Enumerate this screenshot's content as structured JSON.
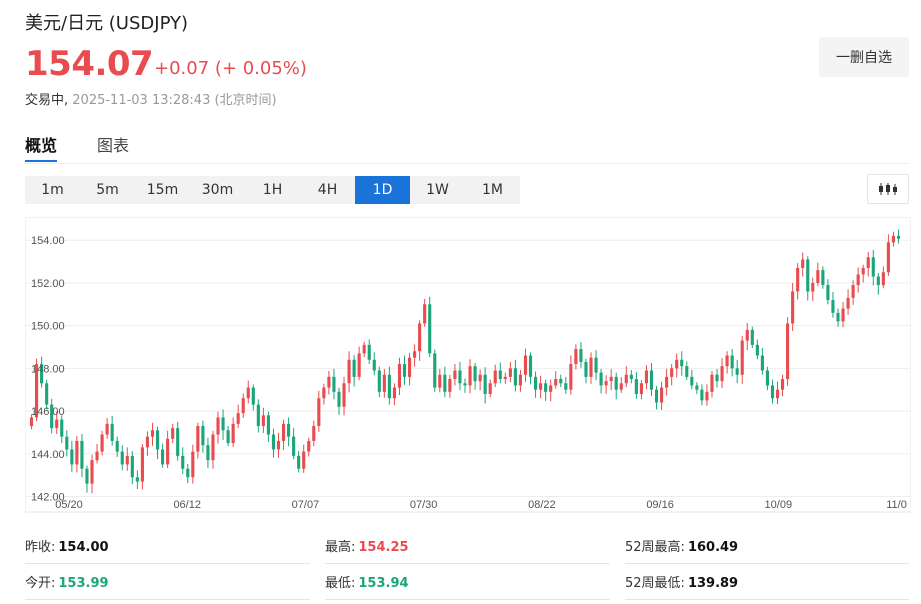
{
  "header": {
    "title": "美元/日元  (USDJPY)",
    "price": "154.07",
    "change": "+0.07 (+ 0.05%)",
    "status": "交易中,",
    "timestamp": "2025-11-03 13:28:43  (北京时间)",
    "remove_label": "一删自选"
  },
  "tabs": [
    {
      "label": "概览",
      "active": true
    },
    {
      "label": "图表",
      "active": false
    }
  ],
  "periods": [
    "1m",
    "5m",
    "15m",
    "30m",
    "1H",
    "4H",
    "1D",
    "1W",
    "1M"
  ],
  "active_period": "1D",
  "colors": {
    "up": "#e84c4f",
    "down": "#1aa67a",
    "accent": "#1a73d9"
  },
  "chart_data": {
    "type": "candlestick",
    "y_ticks": [
      "154.00",
      "152.00",
      "150.00",
      "148.00",
      "146.00",
      "144.00",
      "142.00"
    ],
    "x_ticks": [
      "05/20",
      "06/12",
      "07/07",
      "07/30",
      "08/22",
      "09/16",
      "10/09",
      "11/0"
    ],
    "ylim": [
      141.6,
      154.9
    ],
    "last_value": 154.07,
    "closes": [
      145.7,
      148.2,
      147.3,
      146.3,
      145.2,
      145.6,
      144.8,
      144.2,
      143.5,
      144.6,
      143.3,
      142.6,
      143.7,
      144.1,
      144.9,
      145.4,
      144.6,
      144.1,
      143.5,
      143.9,
      142.9,
      142.7,
      144.3,
      144.8,
      145.1,
      144.2,
      143.5,
      144.7,
      145.2,
      143.9,
      143.3,
      142.9,
      144.1,
      145.3,
      144.4,
      143.7,
      144.9,
      145.7,
      145.1,
      144.5,
      145.4,
      145.9,
      146.6,
      147.1,
      146.3,
      145.3,
      145.8,
      144.9,
      144.2,
      144.6,
      145.4,
      144.8,
      143.9,
      143.3,
      144.1,
      144.6,
      145.3,
      146.6,
      147.1,
      147.6,
      146.9,
      146.2,
      147.3,
      148.4,
      147.6,
      148.7,
      149.1,
      148.4,
      147.9,
      146.9,
      147.7,
      146.6,
      147.1,
      148.2,
      147.6,
      148.5,
      148.8,
      150.1,
      151.0,
      148.7,
      147.1,
      147.7,
      146.9,
      147.5,
      147.9,
      147.3,
      147.2,
      148.1,
      147.4,
      147.7,
      146.8,
      147.3,
      147.9,
      147.5,
      147.6,
      148.0,
      147.2,
      147.7,
      148.6,
      147.6,
      147.0,
      147.3,
      146.9,
      147.2,
      147.5,
      147.3,
      147.0,
      148.2,
      148.9,
      148.3,
      147.6,
      148.5,
      147.8,
      147.2,
      147.4,
      147.6,
      147.0,
      147.3,
      147.7,
      147.5,
      146.8,
      147.3,
      147.9,
      147.0,
      146.4,
      147.1,
      147.6,
      148.0,
      148.4,
      148.1,
      147.6,
      147.2,
      147.0,
      146.5,
      146.9,
      147.7,
      147.4,
      148.1,
      148.6,
      148.0,
      147.7,
      149.3,
      149.8,
      149.1,
      148.6,
      147.9,
      147.2,
      146.6,
      147.0,
      147.5,
      150.1,
      151.6,
      152.7,
      153.1,
      151.6,
      152.0,
      152.6,
      151.9,
      151.2,
      150.6,
      150.2,
      150.8,
      151.3,
      151.9,
      152.4,
      152.7,
      153.2,
      152.3,
      151.9,
      152.5,
      153.9,
      154.2,
      154.07
    ],
    "marks": [
      0,
      65
    ]
  },
  "stats": [
    {
      "label": "昨收:",
      "value": "154.00",
      "color": "dark"
    },
    {
      "label": "最高:",
      "value": "154.25",
      "color": "red"
    },
    {
      "label": "52周最高:",
      "value": "160.49",
      "color": "dark"
    },
    {
      "label": "今开:",
      "value": "153.99",
      "color": "green"
    },
    {
      "label": "最低:",
      "value": "153.94",
      "color": "green"
    },
    {
      "label": "52周最低:",
      "value": "139.89",
      "color": "dark"
    }
  ]
}
